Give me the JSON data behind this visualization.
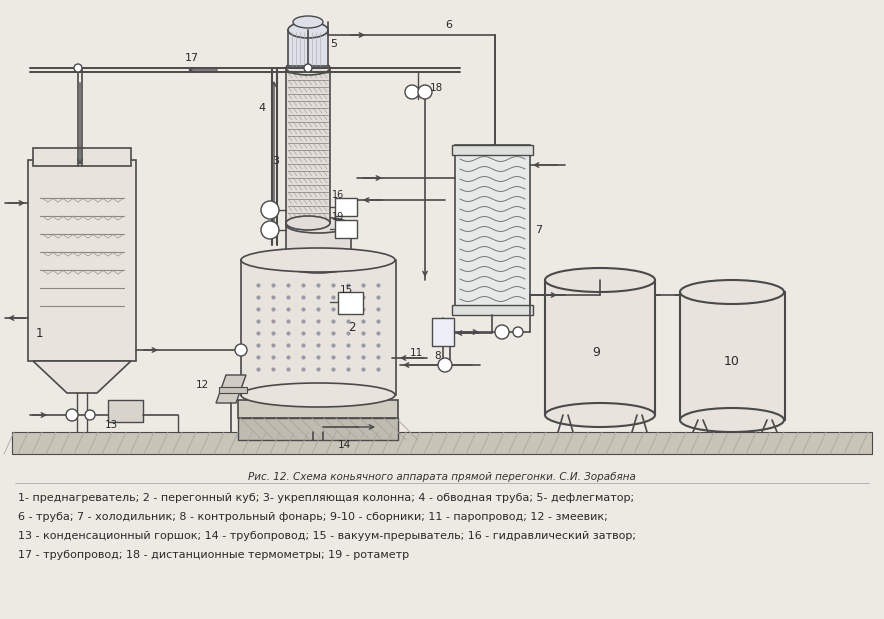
{
  "bg_color": "#ede9e3",
  "title": "Рис. 12. Схема коньячного аппарата прямой перегонки. С.И. Зорабяна",
  "legend_lines": [
    "1- преднагреватель; 2 - перегонный куб; 3- укрепляющая колонна; 4 - обводная труба; 5- дефлегматор;",
    "6 - труба; 7 - холодильник; 8 - контрольный фонарь; 9-10 - сборники; 11 - паропровод; 12 - змеевик;",
    "13 - конденсационный горшок; 14 - трубопровод; 15 - вакуум-прерыватель; 16 - гидравлический затвор;",
    "17 - трубопровод; 18 - дистанционные термометры; 19 - ротаметр"
  ],
  "line_color": "#4a4a4a",
  "text_color": "#2a2a2a",
  "caption_color": "#333333",
  "tank_fill": "#e8e3dc",
  "col_fill": "#e2ddd8",
  "ground_fill": "#c8c4b8"
}
